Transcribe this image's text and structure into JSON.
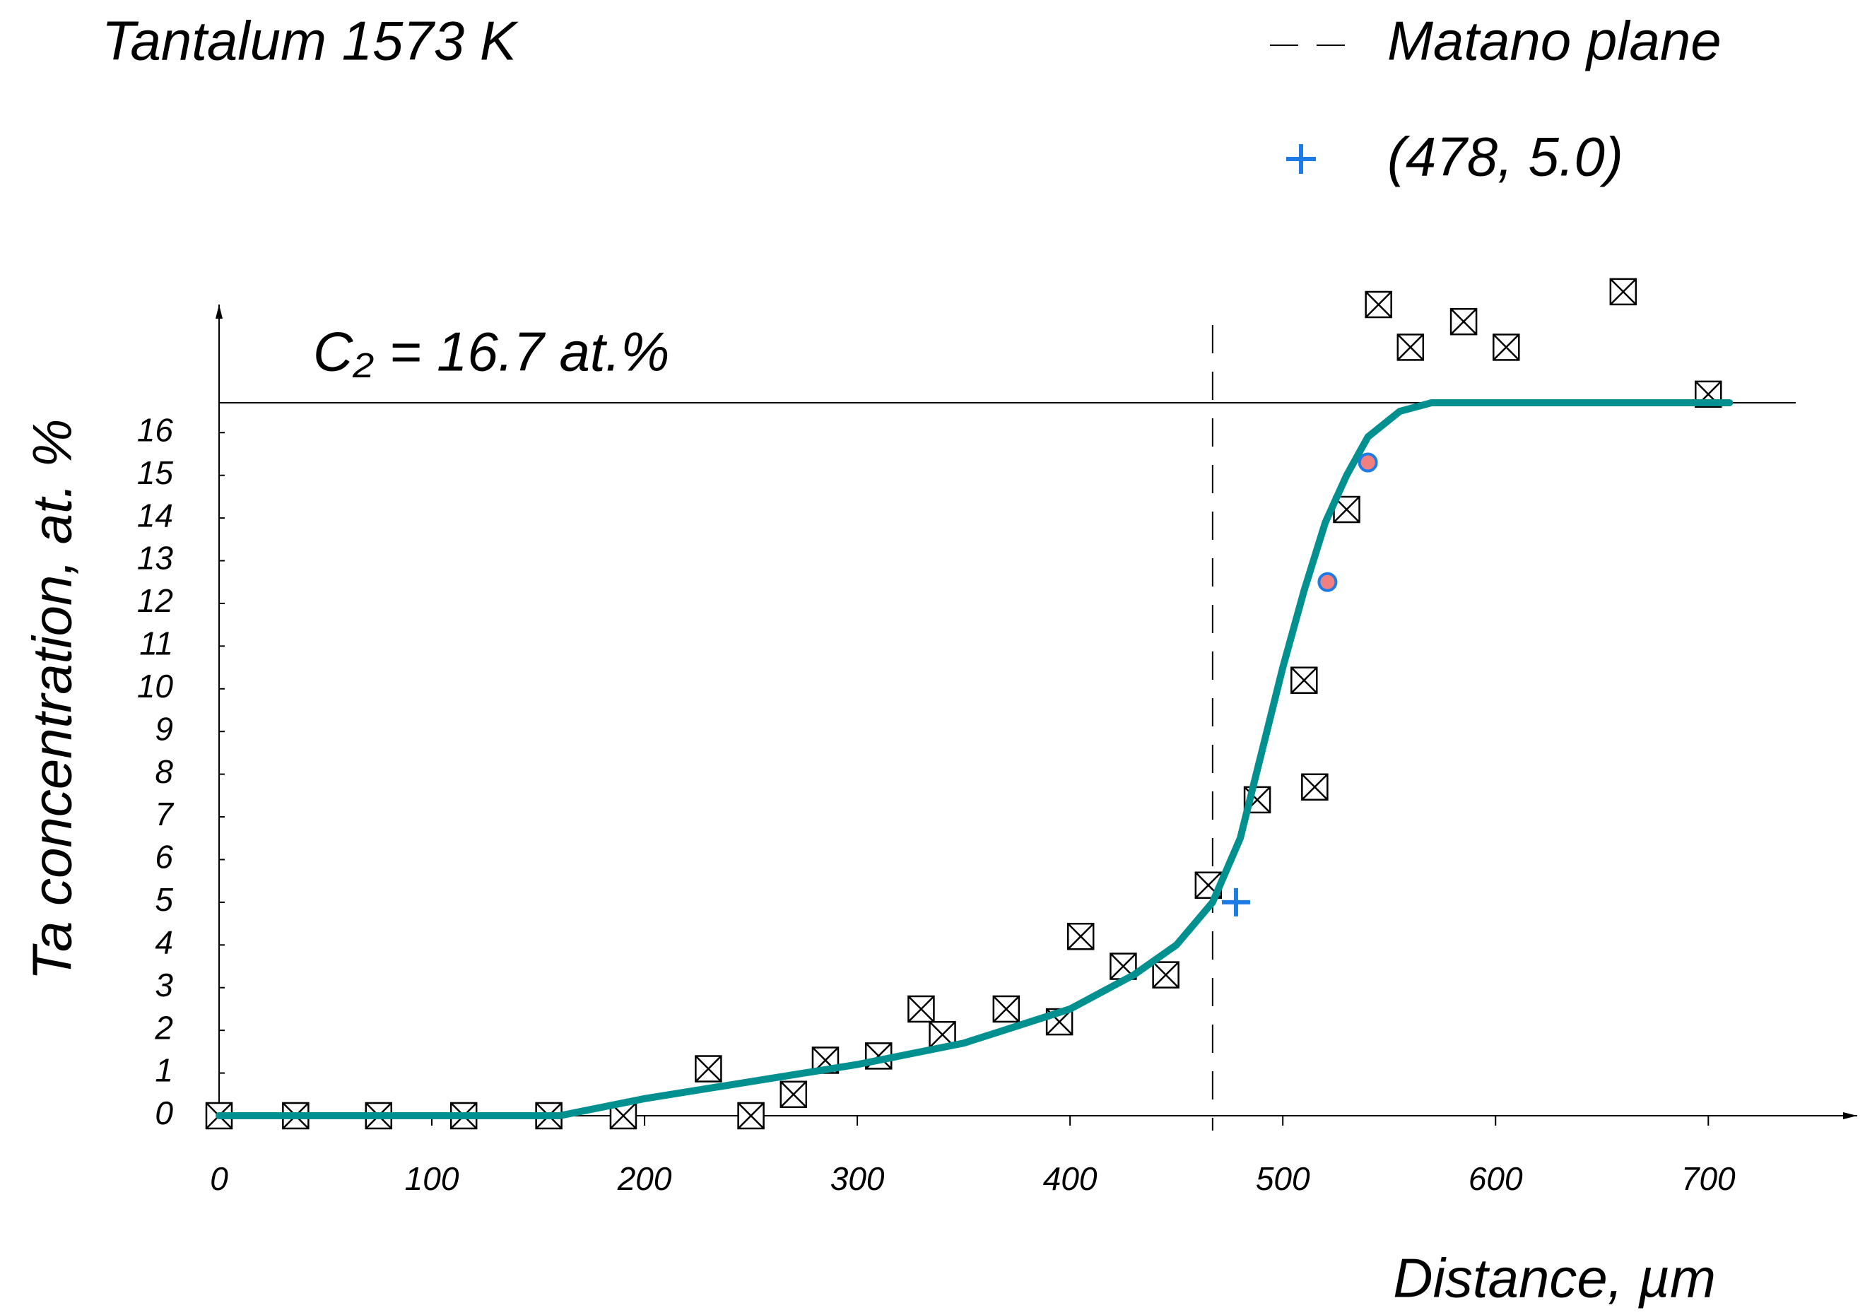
{
  "chart_data": {
    "type": "scatter",
    "title": "Tantalum 1573 K",
    "xlabel": "Distance, µm",
    "ylabel": "Ta concentration, at. %",
    "xlim": [
      0,
      770
    ],
    "ylim": [
      0,
      19
    ],
    "xticks": [
      0,
      100,
      200,
      300,
      400,
      500,
      600,
      700
    ],
    "yticks": [
      0,
      1,
      2,
      3,
      4,
      5,
      6,
      7,
      8,
      9,
      10,
      11,
      12,
      13,
      14,
      15,
      16
    ],
    "points": {
      "color": "#000000",
      "x": [
        0,
        36,
        75,
        115,
        155,
        190,
        230,
        250,
        270,
        285,
        310,
        330,
        340,
        370,
        395,
        405,
        425,
        445,
        465,
        488,
        510,
        515,
        530,
        545,
        560,
        585,
        605,
        660,
        700
      ],
      "values": [
        0,
        0,
        0,
        0,
        0,
        0,
        1.1,
        0,
        0.5,
        1.3,
        1.4,
        2.5,
        1.9,
        2.5,
        2.2,
        4.2,
        3.5,
        3.3,
        5.4,
        7.4,
        10.2,
        7.7,
        14.2,
        19.0,
        18.0,
        18.6,
        18.0,
        19.3,
        16.9
      ]
    },
    "curve": {
      "color": "#009090",
      "x": [
        0,
        160,
        200,
        250,
        300,
        350,
        400,
        430,
        450,
        467,
        480,
        490,
        500,
        510,
        520,
        530,
        540,
        555,
        570,
        710
      ],
      "values": [
        0,
        0,
        0.4,
        0.8,
        1.2,
        1.7,
        2.5,
        3.3,
        4.0,
        5.0,
        6.5,
        8.5,
        10.5,
        12.3,
        13.9,
        15.0,
        15.9,
        16.5,
        16.7,
        16.7
      ]
    },
    "highlight": {
      "color": "#f08080",
      "x": [
        521,
        540
      ],
      "values": [
        12.5,
        15.3
      ]
    },
    "matano": {
      "name": "Matano plane",
      "x": 467
    },
    "marker": {
      "color": "#1e7be6",
      "x": 478,
      "value": 5.0,
      "label": "(478, 5.0)"
    },
    "c2": {
      "value": 16.7,
      "label": "C₂ = 16.7 at.%"
    }
  }
}
